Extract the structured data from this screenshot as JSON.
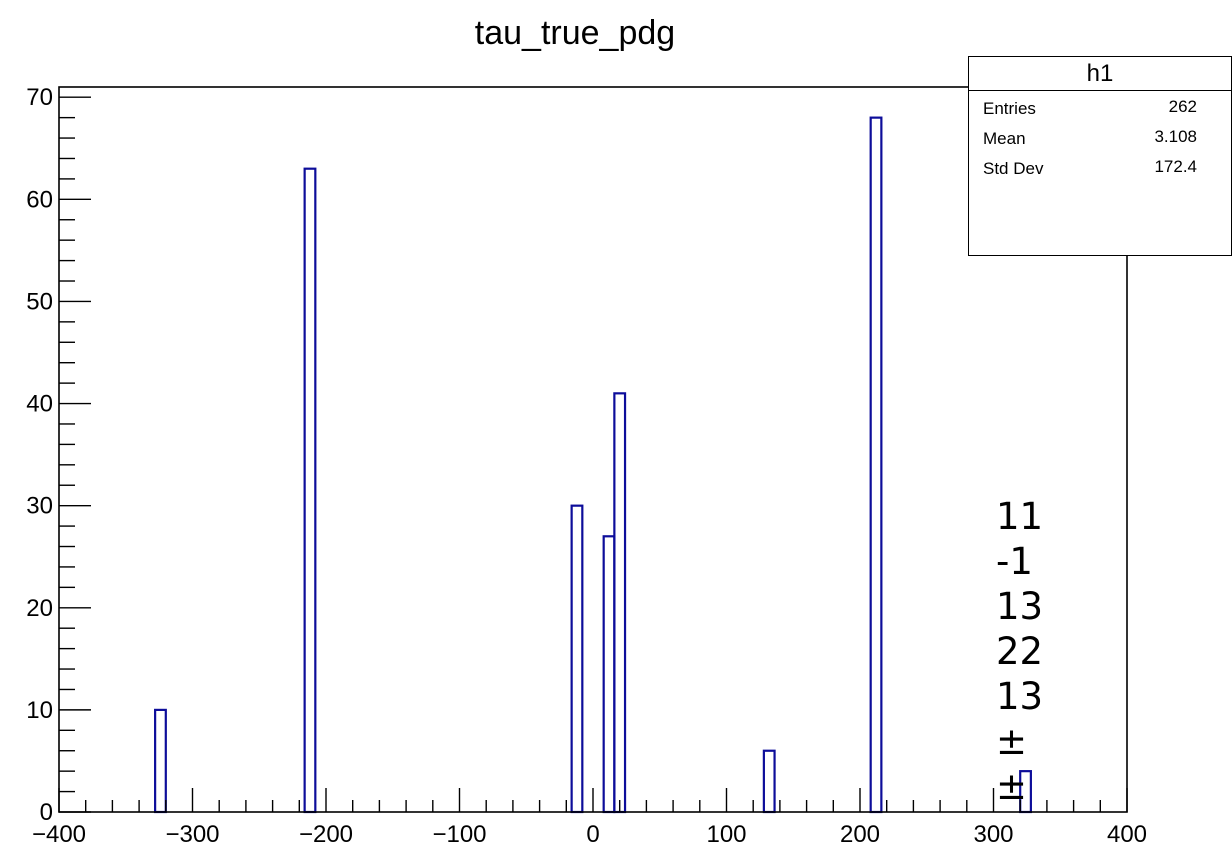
{
  "chart_data": {
    "type": "bar",
    "title": "tau_true_pdg",
    "xlabel": "",
    "ylabel": "",
    "xlim": [
      -400,
      400
    ],
    "ylim": [
      0,
      71
    ],
    "x_ticks": [
      -400,
      -300,
      -200,
      -100,
      0,
      100,
      200,
      300,
      400
    ],
    "y_ticks": [
      0,
      10,
      20,
      30,
      40,
      50,
      60,
      70
    ],
    "bin_width": 8,
    "bins": [
      {
        "x_low": -328,
        "x_high": -320,
        "value": 10
      },
      {
        "x_low": -216,
        "x_high": -208,
        "value": 63
      },
      {
        "x_low": -16,
        "x_high": -8,
        "value": 30
      },
      {
        "x_low": 8,
        "x_high": 16,
        "value": 27
      },
      {
        "x_low": 16,
        "x_high": 24,
        "value": 41
      },
      {
        "x_low": 128,
        "x_high": 136,
        "value": 6
      },
      {
        "x_low": 208,
        "x_high": 216,
        "value": 68
      },
      {
        "x_low": 320,
        "x_high": 328,
        "value": 4
      }
    ],
    "line_color": "#0d0d9a",
    "grid": false
  },
  "stats": {
    "name": "h1",
    "entries_label": "Entries",
    "entries_value": "262",
    "mean_label": "Mean",
    "mean_value": "3.108",
    "stddev_label": "Std Dev",
    "stddev_value": "172.4"
  },
  "side_notes": [
    "11",
    "-1",
    "13",
    "22",
    "13",
    "±",
    "±"
  ]
}
